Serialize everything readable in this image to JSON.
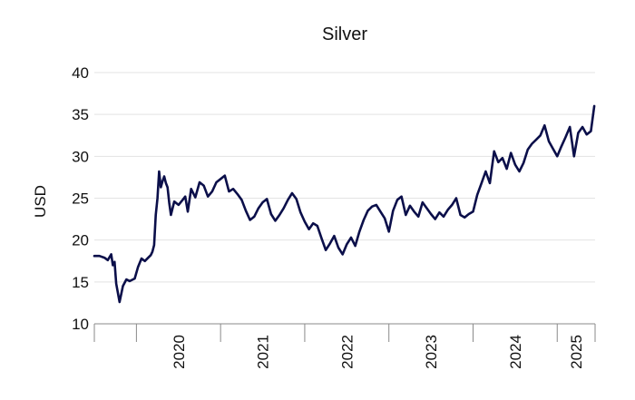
{
  "chart_data": {
    "type": "line",
    "title": "Silver",
    "xlabel": "",
    "ylabel": "USD",
    "ylim": [
      10,
      40
    ],
    "yticks": [
      10,
      15,
      20,
      25,
      30,
      35,
      40
    ],
    "xlim": [
      2019.5,
      2025.45
    ],
    "xticks": [
      "2020",
      "2021",
      "2022",
      "2023",
      "2024",
      "2025"
    ],
    "grid": true,
    "legend": "none",
    "line_color": "#0b0f4a",
    "series": [
      {
        "x": [
          2019.5,
          2019.56,
          2019.62,
          2019.66,
          2019.7,
          2019.72,
          2019.74,
          2019.76,
          2019.8,
          2019.84,
          2019.88,
          2019.92,
          2019.98,
          2020.02,
          2020.06,
          2020.1,
          2020.14,
          2020.17,
          2020.19,
          2020.21,
          2020.23,
          2020.25,
          2020.27,
          2020.29,
          2020.31,
          2020.33,
          2020.35,
          2020.37,
          2020.39,
          2020.41,
          2020.45,
          2020.5,
          2020.55,
          2020.58,
          2020.61,
          2020.65,
          2020.7,
          2020.75,
          2020.8,
          2020.85,
          2020.9,
          2020.95,
          2021.0,
          2021.05,
          2021.1,
          2021.15,
          2021.2,
          2021.25,
          2021.3,
          2021.35,
          2021.4,
          2021.45,
          2021.5,
          2021.55,
          2021.6,
          2021.65,
          2021.7,
          2021.75,
          2021.8,
          2021.85,
          2021.9,
          2021.95,
          2022.0,
          2022.05,
          2022.1,
          2022.15,
          2022.2,
          2022.25,
          2022.3,
          2022.35,
          2022.4,
          2022.45,
          2022.5,
          2022.55,
          2022.6,
          2022.65,
          2022.7,
          2022.75,
          2022.8,
          2022.85,
          2022.9,
          2022.95,
          2023.0,
          2023.05,
          2023.1,
          2023.15,
          2023.2,
          2023.25,
          2023.3,
          2023.35,
          2023.4,
          2023.45,
          2023.5,
          2023.55,
          2023.6,
          2023.65,
          2023.7,
          2023.75,
          2023.8,
          2023.85,
          2023.9,
          2023.95,
          2024.0,
          2024.05,
          2024.1,
          2024.15,
          2024.2,
          2024.25,
          2024.3,
          2024.35,
          2024.4,
          2024.45,
          2024.5,
          2024.55,
          2024.6,
          2024.65,
          2024.7,
          2024.75,
          2024.8,
          2024.85,
          2024.9,
          2024.95,
          2025.0,
          2025.05,
          2025.1,
          2025.15,
          2025.2,
          2025.25,
          2025.3,
          2025.35,
          2025.4,
          2025.44
        ],
        "y": [
          18.1,
          18.1,
          17.9,
          17.6,
          18.3,
          17.0,
          17.4,
          14.8,
          12.6,
          14.5,
          15.3,
          15.1,
          15.4,
          16.8,
          17.8,
          17.5,
          17.9,
          18.2,
          18.6,
          19.4,
          23.0,
          25.0,
          28.2,
          26.3,
          27.0,
          27.6,
          26.8,
          26.3,
          24.4,
          23.0,
          24.6,
          24.2,
          24.8,
          25.2,
          23.4,
          26.1,
          25.1,
          26.9,
          26.5,
          25.2,
          25.8,
          26.9,
          27.3,
          27.7,
          25.8,
          26.1,
          25.5,
          24.8,
          23.5,
          22.4,
          22.8,
          23.8,
          24.5,
          24.9,
          23.1,
          22.3,
          23.0,
          23.8,
          24.8,
          25.6,
          24.9,
          23.3,
          22.2,
          21.3,
          22.0,
          21.7,
          20.2,
          18.8,
          19.6,
          20.5,
          19.1,
          18.3,
          19.5,
          20.3,
          19.3,
          21.0,
          22.4,
          23.5,
          24.0,
          24.2,
          23.4,
          22.6,
          21.0,
          23.5,
          24.8,
          25.2,
          23.0,
          24.1,
          23.4,
          22.8,
          24.5,
          23.8,
          23.1,
          22.5,
          23.3,
          22.8,
          23.6,
          24.2,
          25.0,
          23.0,
          22.7,
          23.1,
          23.4,
          25.4,
          26.8,
          28.2,
          26.8,
          30.6,
          29.3,
          29.8,
          28.5,
          30.4,
          29.0,
          28.2,
          29.2,
          30.8,
          31.5,
          32.0,
          32.5,
          33.7,
          31.8,
          30.9,
          30.0,
          31.2,
          32.3,
          33.5,
          30.0,
          32.8,
          33.5,
          32.6,
          33.0,
          36.0
        ]
      }
    ]
  }
}
